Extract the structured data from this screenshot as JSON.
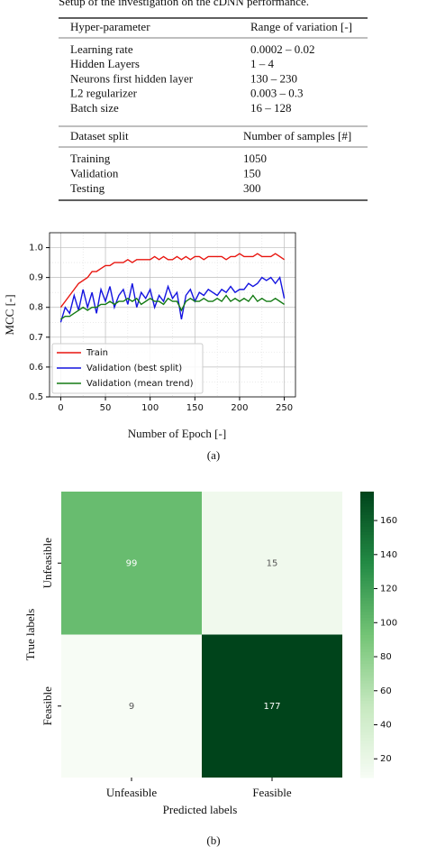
{
  "table": {
    "caption": "Setup of the investigation on the cDNN performance.",
    "header": [
      "Hyper-parameter",
      "Range of variation [-]"
    ],
    "rows": [
      [
        "Learning rate",
        "0.0002 – 0.02"
      ],
      [
        "Hidden Layers",
        "1 – 4"
      ],
      [
        "Neurons first hidden layer",
        "130 – 230"
      ],
      [
        "L2 regularizer",
        "0.003 – 0.3"
      ],
      [
        "Batch size",
        "16 – 128"
      ]
    ],
    "split_header": [
      "Dataset split",
      "Number of samples [#]"
    ],
    "split_rows": [
      [
        "Training",
        "1050"
      ],
      [
        "Validation",
        "150"
      ],
      [
        "Testing",
        "300"
      ]
    ]
  },
  "chart_data": [
    {
      "type": "line",
      "xlabel": "Number of Epoch [-]",
      "ylabel": "MCC [-]",
      "caption": "(a)",
      "x": [
        0,
        5,
        10,
        15,
        20,
        25,
        30,
        35,
        40,
        45,
        50,
        55,
        60,
        65,
        70,
        75,
        80,
        85,
        90,
        95,
        100,
        105,
        110,
        115,
        120,
        125,
        130,
        135,
        140,
        145,
        150,
        155,
        160,
        165,
        170,
        175,
        180,
        185,
        190,
        195,
        200,
        205,
        210,
        215,
        220,
        225,
        230,
        235,
        240,
        245,
        250
      ],
      "series": [
        {
          "name": "Train",
          "color": "#e8150f",
          "values": [
            0.8,
            0.82,
            0.84,
            0.86,
            0.88,
            0.89,
            0.9,
            0.92,
            0.92,
            0.93,
            0.94,
            0.94,
            0.95,
            0.95,
            0.95,
            0.96,
            0.95,
            0.96,
            0.96,
            0.96,
            0.96,
            0.97,
            0.96,
            0.97,
            0.96,
            0.96,
            0.97,
            0.96,
            0.97,
            0.96,
            0.97,
            0.97,
            0.96,
            0.97,
            0.97,
            0.97,
            0.97,
            0.96,
            0.97,
            0.97,
            0.98,
            0.97,
            0.97,
            0.97,
            0.98,
            0.97,
            0.97,
            0.97,
            0.98,
            0.97,
            0.96
          ]
        },
        {
          "name": "Validation (best split)",
          "color": "#1414e0",
          "values": [
            0.75,
            0.8,
            0.78,
            0.84,
            0.79,
            0.86,
            0.8,
            0.85,
            0.78,
            0.86,
            0.82,
            0.87,
            0.8,
            0.84,
            0.86,
            0.81,
            0.88,
            0.8,
            0.85,
            0.83,
            0.86,
            0.8,
            0.84,
            0.82,
            0.87,
            0.83,
            0.85,
            0.76,
            0.84,
            0.86,
            0.82,
            0.85,
            0.84,
            0.86,
            0.85,
            0.84,
            0.86,
            0.85,
            0.87,
            0.85,
            0.86,
            0.86,
            0.88,
            0.87,
            0.88,
            0.9,
            0.89,
            0.9,
            0.88,
            0.9,
            0.83
          ]
        },
        {
          "name": "Validation (mean trend)",
          "color": "#137a13",
          "values": [
            0.76,
            0.77,
            0.77,
            0.78,
            0.79,
            0.8,
            0.79,
            0.8,
            0.8,
            0.81,
            0.81,
            0.82,
            0.81,
            0.82,
            0.82,
            0.83,
            0.82,
            0.83,
            0.81,
            0.82,
            0.83,
            0.82,
            0.82,
            0.81,
            0.83,
            0.82,
            0.82,
            0.79,
            0.82,
            0.83,
            0.82,
            0.82,
            0.83,
            0.82,
            0.82,
            0.83,
            0.82,
            0.84,
            0.82,
            0.83,
            0.82,
            0.83,
            0.82,
            0.84,
            0.82,
            0.83,
            0.82,
            0.82,
            0.83,
            0.82,
            0.81
          ]
        }
      ],
      "xlim": [
        -12.5,
        262.5
      ],
      "xticks": [
        0,
        50,
        100,
        150,
        200,
        250
      ],
      "ylim": [
        0.5,
        1.05
      ],
      "yticks": [
        0.5,
        0.6,
        0.7,
        0.8,
        0.9,
        {
          "value": 1.0,
          "label": "1.0"
        }
      ],
      "grid": true,
      "legend": "lower left"
    },
    {
      "type": "heatmap",
      "xlabel": "Predicted labels",
      "ylabel": "True labels",
      "caption": "(b)",
      "x_categories": [
        "Unfeasible",
        "Feasible"
      ],
      "y_categories": [
        "Unfeasible",
        "Feasible"
      ],
      "matrix": [
        [
          99,
          15
        ],
        [
          9,
          177
        ]
      ],
      "clim": [
        9,
        177
      ],
      "colorbar_ticks": [
        20,
        40,
        60,
        80,
        100,
        120,
        140,
        160
      ],
      "colormap": [
        "#f7fcf5",
        "#c7e9c0",
        "#74c476",
        "#238b45",
        "#00441b"
      ]
    }
  ]
}
